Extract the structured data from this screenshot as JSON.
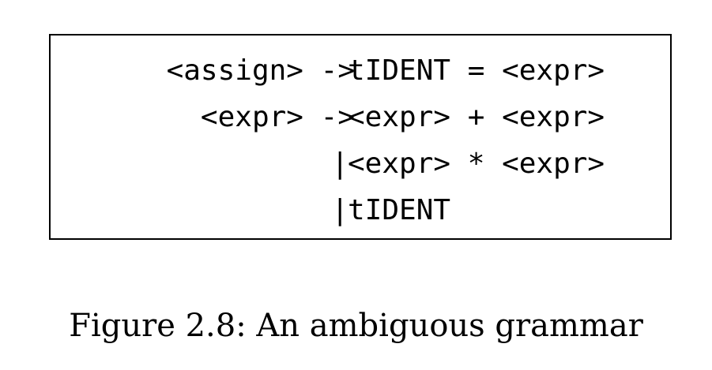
{
  "grammar": {
    "rules": [
      {
        "lhs": "<assign> ->",
        "rhs": "tIDENT = <expr>"
      },
      {
        "lhs": "<expr> ->",
        "rhs": "<expr> + <expr>"
      },
      {
        "lhs": "|",
        "rhs": "<expr> * <expr>"
      },
      {
        "lhs": "|",
        "rhs": "tIDENT"
      }
    ]
  },
  "caption": "Figure 2.8: An ambiguous grammar"
}
